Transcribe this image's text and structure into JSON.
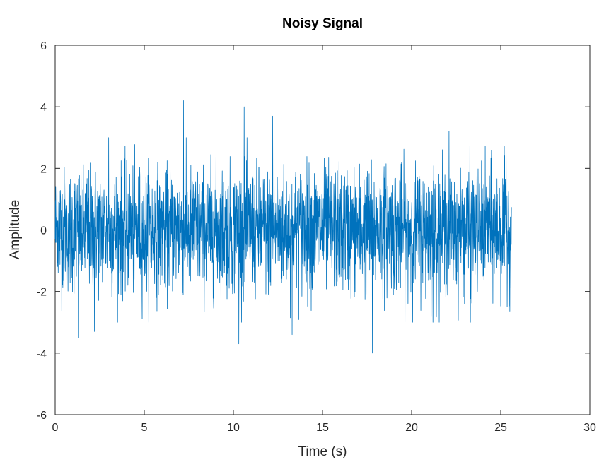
{
  "chart_data": {
    "type": "line",
    "title": "Noisy Signal",
    "xlabel": "Time (s)",
    "ylabel": "Amplitude",
    "xlim": [
      0,
      30
    ],
    "ylim": [
      -6,
      6
    ],
    "xticks": [
      0,
      5,
      10,
      15,
      20,
      25,
      30
    ],
    "yticks": [
      -6,
      -4,
      -2,
      0,
      2,
      4,
      6
    ],
    "xtick_labels": [
      "0",
      "5",
      "10",
      "15",
      "20",
      "25",
      "30"
    ],
    "ytick_labels": [
      "-6",
      "-4",
      "-2",
      "0",
      "2",
      "4",
      "6"
    ],
    "grid": false,
    "series": [
      {
        "color": "#0072bd",
        "x_start": 0,
        "x_end": 25.6,
        "sample_count": 2560,
        "mean": 0,
        "std": 1,
        "peaks": [
          {
            "x": 7.2,
            "y": 4.2
          },
          {
            "x": 10.6,
            "y": 4.0
          },
          {
            "x": 12.2,
            "y": 3.7
          },
          {
            "x": 3.0,
            "y": 3.0
          },
          {
            "x": 22.1,
            "y": 3.2
          },
          {
            "x": 25.3,
            "y": 3.1
          },
          {
            "x": 0.1,
            "y": 2.5
          }
        ],
        "troughs": [
          {
            "x": 17.8,
            "y": -4.0
          },
          {
            "x": 10.3,
            "y": -3.7
          },
          {
            "x": 1.3,
            "y": -3.5
          },
          {
            "x": 12.0,
            "y": -3.6
          },
          {
            "x": 13.3,
            "y": -3.4
          },
          {
            "x": 2.2,
            "y": -3.3
          },
          {
            "x": 21.2,
            "y": -3.0
          },
          {
            "x": 23.3,
            "y": -3.0
          }
        ]
      }
    ]
  }
}
